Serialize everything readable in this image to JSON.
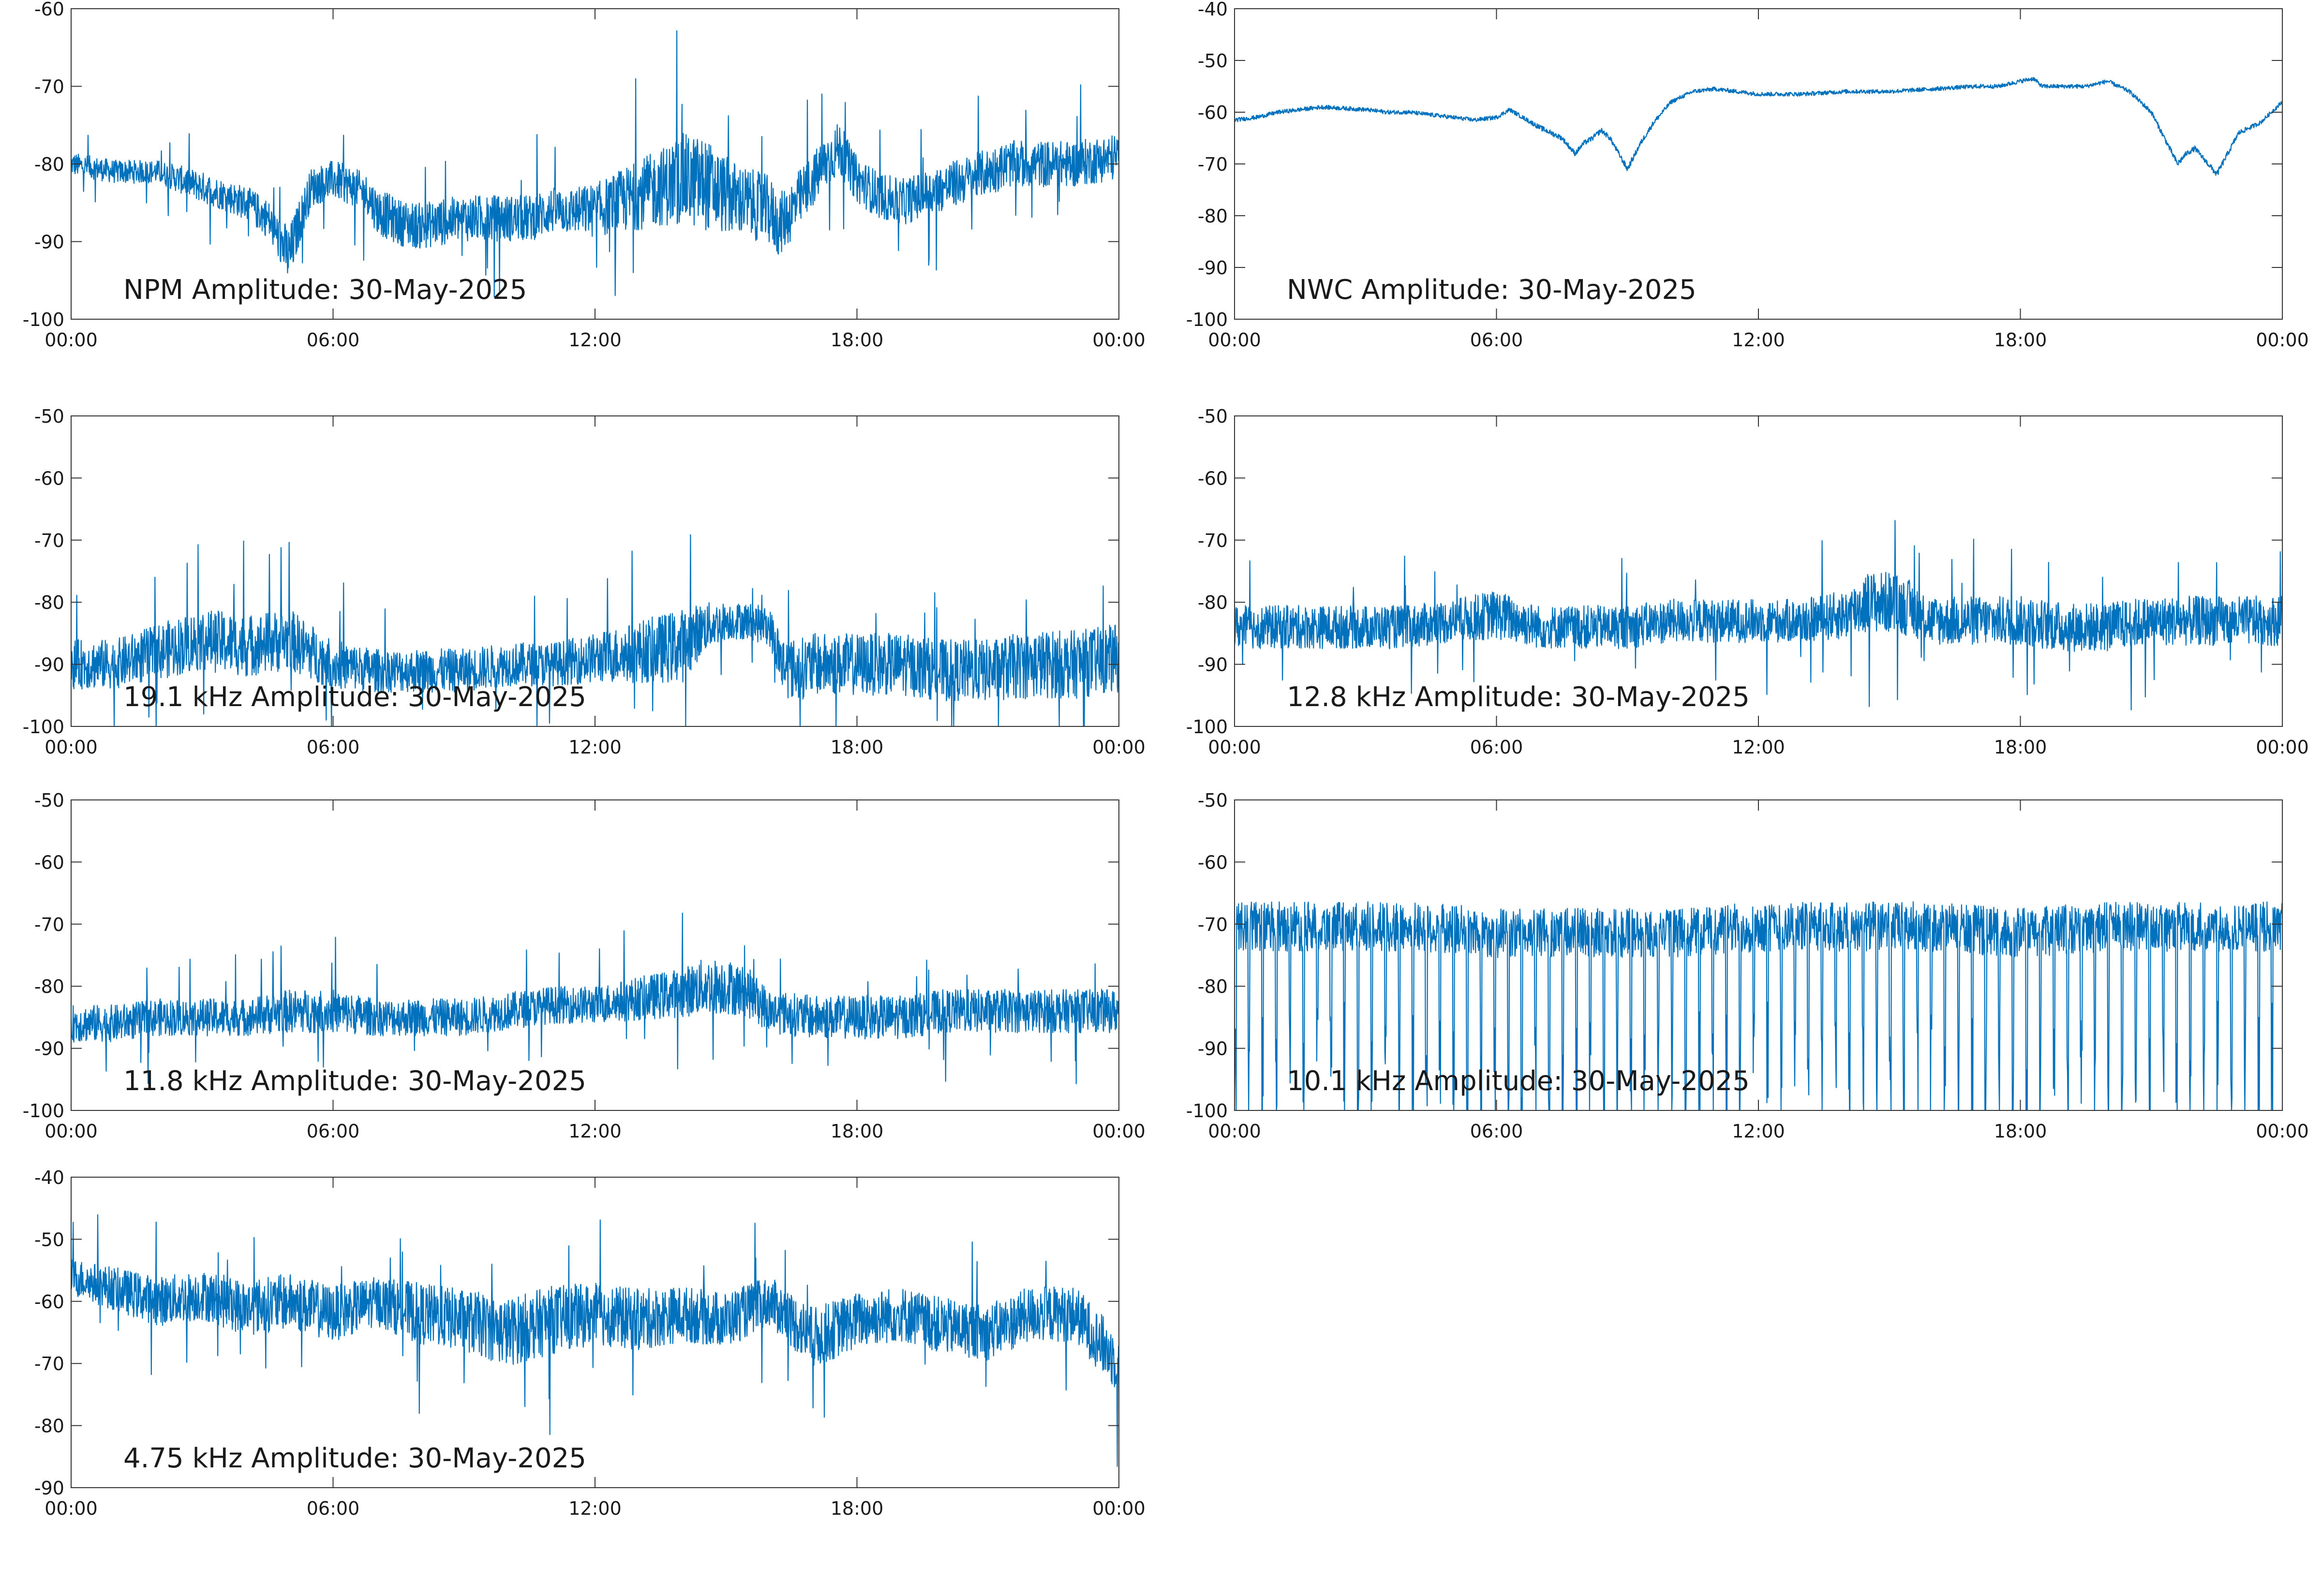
{
  "figure": {
    "series_color": "#0072bd",
    "axis_color": "#333333",
    "background": "#ffffff"
  },
  "chart_data": [
    {
      "type": "line",
      "title": "NPM Amplitude: 30-May-2025",
      "xlabel": "",
      "ylabel": "",
      "xticks": [
        "00:00",
        "06:00",
        "12:00",
        "18:00",
        "00:00"
      ],
      "xlim_hours": [
        0,
        24
      ],
      "yticks": [
        "-60",
        "-70",
        "-80",
        "-90",
        "-100"
      ],
      "ylim": [
        -100,
        -60
      ],
      "grid": false,
      "series": [
        {
          "x_hours": [
            0,
            0.5,
            1,
            1.5,
            2,
            2.5,
            3,
            3.5,
            4,
            4.5,
            4.8,
            5,
            5.2,
            5.5,
            6,
            6.5,
            6.8,
            7,
            7.5,
            8,
            8.5,
            9,
            9.5,
            10,
            10.5,
            11,
            11.5,
            12,
            12.5,
            13,
            13.5,
            14,
            14.5,
            15,
            15.5,
            16,
            16.2,
            16.5,
            17,
            17.4,
            17.6,
            17.8,
            18,
            18.5,
            19,
            19.5,
            20,
            20.5,
            21,
            21.5,
            22,
            22.5,
            23,
            23.5,
            24
          ],
          "values": [
            -80,
            -80.5,
            -81,
            -81,
            -81,
            -82,
            -83,
            -84,
            -85,
            -87,
            -90,
            -92,
            -88,
            -83,
            -82,
            -83,
            -84,
            -86,
            -87.5,
            -88,
            -87.5,
            -87,
            -87,
            -87,
            -87,
            -86,
            -86,
            -86,
            -85,
            -84,
            -83,
            -82,
            -82.5,
            -84,
            -85,
            -86,
            -88,
            -86,
            -82,
            -79,
            -78,
            -80,
            -82,
            -84,
            -85,
            -84,
            -83,
            -82,
            -81,
            -80,
            -80,
            -80,
            -80,
            -79.5,
            -79
          ],
          "noise": [
            1.5,
            1.5,
            1.5,
            1.5,
            1.5,
            1.8,
            2,
            2,
            2.2,
            2.5,
            3,
            4,
            3,
            2.5,
            2.5,
            2.5,
            2.5,
            3,
            3,
            3,
            3,
            3,
            3,
            3,
            3,
            3,
            3,
            3.5,
            4,
            4.5,
            5,
            6,
            6,
            5,
            4.5,
            4.5,
            4,
            4,
            3.5,
            3.5,
            3.5,
            3,
            3,
            3,
            3,
            3,
            3,
            3,
            3,
            3,
            3,
            3,
            3,
            3,
            3
          ]
        }
      ]
    },
    {
      "type": "line",
      "title": "NWC Amplitude: 30-May-2025",
      "xlabel": "",
      "ylabel": "",
      "xticks": [
        "00:00",
        "06:00",
        "12:00",
        "18:00",
        "00:00"
      ],
      "xlim_hours": [
        0,
        24
      ],
      "yticks": [
        "-40",
        "-50",
        "-60",
        "-70",
        "-80",
        "-90",
        "-100"
      ],
      "ylim": [
        -100,
        -40
      ],
      "grid": false,
      "series": [
        {
          "x_hours": [
            0,
            0.5,
            1,
            2,
            3,
            3.5,
            4,
            5,
            5.5,
            6,
            6.3,
            6.6,
            7,
            7.5,
            7.8,
            8,
            8.2,
            8.4,
            8.6,
            8.8,
            9,
            9.3,
            9.6,
            10,
            10.5,
            11,
            12,
            13,
            14,
            15,
            16,
            17,
            17.5,
            18,
            18.3,
            18.5,
            19,
            19.5,
            20,
            20.5,
            21,
            21.3,
            21.6,
            21.8,
            22,
            22.2,
            22.5,
            23,
            23.5,
            24
          ],
          "values": [
            -61.5,
            -61,
            -60,
            -59,
            -59.5,
            -60,
            -60,
            -61,
            -61.5,
            -61,
            -59.5,
            -61,
            -63,
            -65,
            -68,
            -66,
            -65,
            -63.5,
            -65,
            -68,
            -71,
            -66,
            -62,
            -58,
            -56,
            -55.5,
            -56.5,
            -56.5,
            -56,
            -56,
            -55.5,
            -55,
            -55,
            -54,
            -53.5,
            -55,
            -55,
            -55,
            -54,
            -56,
            -60,
            -65,
            -70,
            -68,
            -67,
            -69,
            -72,
            -64,
            -62,
            -58
          ],
          "noise": [
            0.4,
            0.4,
            0.4,
            0.4,
            0.4,
            0.4,
            0.4,
            0.4,
            0.4,
            0.4,
            0.4,
            0.4,
            0.5,
            0.5,
            0.5,
            0.5,
            0.5,
            0.5,
            0.5,
            0.5,
            0.6,
            0.5,
            0.5,
            0.4,
            0.4,
            0.4,
            0.4,
            0.4,
            0.4,
            0.4,
            0.4,
            0.4,
            0.4,
            0.4,
            0.4,
            0.4,
            0.4,
            0.4,
            0.4,
            0.4,
            0.5,
            0.5,
            0.6,
            0.5,
            0.5,
            0.5,
            0.6,
            0.5,
            0.4,
            0.4
          ]
        }
      ]
    },
    {
      "type": "line",
      "title": "19.1 kHz Amplitude: 30-May-2025",
      "xlabel": "",
      "ylabel": "",
      "xticks": [
        "00:00",
        "06:00",
        "12:00",
        "18:00",
        "00:00"
      ],
      "xlim_hours": [
        0,
        24
      ],
      "yticks": [
        "-50",
        "-60",
        "-70",
        "-80",
        "-90",
        "-100"
      ],
      "ylim": [
        -100,
        -50
      ],
      "grid": false,
      "series": [
        {
          "x_hours": [
            0,
            1,
            2,
            3,
            4,
            5,
            6,
            7,
            8,
            9,
            10,
            11,
            12,
            13,
            14,
            14.5,
            15,
            15.5,
            16,
            16.3,
            16.6,
            17,
            18,
            19,
            20,
            21,
            22,
            23,
            24
          ],
          "values": [
            -90,
            -90,
            -88,
            -86,
            -87,
            -86,
            -90,
            -91,
            -91,
            -91,
            -90,
            -90,
            -89,
            -88,
            -87,
            -84,
            -83,
            -83,
            -84,
            -90,
            -91,
            -90,
            -90,
            -90,
            -91,
            -91,
            -90,
            -90,
            -89
          ],
          "noise": [
            4,
            4,
            4.5,
            5,
            5,
            5,
            4,
            3.5,
            3.5,
            3.5,
            3.5,
            3.5,
            4,
            5,
            6,
            4,
            3,
            3,
            3,
            5,
            5,
            5,
            5,
            5,
            5,
            5,
            5.5,
            5.5,
            5.5
          ]
        }
      ]
    },
    {
      "type": "line",
      "title": "12.8 kHz Amplitude: 30-May-2025",
      "xlabel": "",
      "ylabel": "",
      "xticks": [
        "00:00",
        "06:00",
        "12:00",
        "18:00",
        "00:00"
      ],
      "xlim_hours": [
        0,
        24
      ],
      "yticks": [
        "-50",
        "-60",
        "-70",
        "-80",
        "-90",
        "-100"
      ],
      "ylim": [
        -100,
        -50
      ],
      "grid": false,
      "series": [
        {
          "x_hours": [
            0,
            1,
            2,
            3,
            4,
            5,
            6,
            7,
            8,
            9,
            10,
            11,
            12,
            13,
            14,
            14.5,
            15,
            15.5,
            16,
            17,
            18,
            19,
            20,
            21,
            22,
            23,
            24
          ],
          "values": [
            -84,
            -84,
            -84,
            -84,
            -84,
            -83,
            -82,
            -84,
            -84,
            -84,
            -83,
            -83,
            -83,
            -83,
            -82,
            -80,
            -80,
            -81,
            -83,
            -83,
            -83,
            -84,
            -84,
            -83,
            -83,
            -83,
            -83
          ],
          "noise": [
            3.5,
            3.5,
            3.5,
            3.5,
            3.5,
            3.5,
            4,
            3.5,
            3.5,
            3.5,
            3.5,
            3.5,
            3.5,
            3.5,
            4,
            5,
            5,
            4.5,
            4,
            4,
            4,
            4,
            4,
            4,
            4,
            4,
            4
          ]
        }
      ]
    },
    {
      "type": "line",
      "title": "11.8 kHz Amplitude: 30-May-2025",
      "xlabel": "",
      "ylabel": "",
      "xticks": [
        "00:00",
        "06:00",
        "12:00",
        "18:00",
        "00:00"
      ],
      "xlim_hours": [
        0,
        24
      ],
      "yticks": [
        "-50",
        "-60",
        "-70",
        "-80",
        "-90",
        "-100"
      ],
      "ylim": [
        -100,
        -50
      ],
      "grid": false,
      "series": [
        {
          "x_hours": [
            0,
            1,
            2,
            3,
            4,
            5,
            6,
            7,
            8,
            9,
            10,
            11,
            12,
            13,
            14,
            14.5,
            15,
            15.5,
            16,
            17,
            18,
            19,
            20,
            21,
            22,
            23,
            24
          ],
          "values": [
            -86,
            -86,
            -85,
            -85,
            -85,
            -84,
            -84,
            -85,
            -85,
            -85,
            -84,
            -83,
            -83,
            -82,
            -81,
            -80,
            -80,
            -81,
            -84,
            -85,
            -85,
            -85,
            -84,
            -84,
            -84,
            -84,
            -84
          ],
          "noise": [
            3,
            3,
            3,
            3,
            3,
            3.5,
            3.5,
            3,
            3,
            3,
            3,
            3,
            3,
            3.5,
            4,
            4.5,
            4.5,
            4,
            3.5,
            3.5,
            3.5,
            3.5,
            3.5,
            3.5,
            3.5,
            3.5,
            3.5
          ]
        }
      ]
    },
    {
      "type": "line",
      "title": "10.1 kHz Amplitude: 30-May-2025",
      "xlabel": "",
      "ylabel": "",
      "xticks": [
        "00:00",
        "06:00",
        "12:00",
        "18:00",
        "00:00"
      ],
      "xlim_hours": [
        0,
        24
      ],
      "yticks": [
        "-50",
        "-60",
        "-70",
        "-80",
        "-90",
        "-100"
      ],
      "ylim": [
        -100,
        -50
      ],
      "grid": false,
      "series": [
        {
          "x_hours": [
            0,
            2,
            4,
            6,
            8,
            10,
            12,
            14,
            16,
            18,
            20,
            22,
            24
          ],
          "values": [
            -72,
            -72,
            -72,
            -73,
            -73,
            -73,
            -72,
            -72,
            -72,
            -73,
            -72,
            -72,
            -72
          ],
          "noise": [
            4,
            4,
            4,
            4,
            4,
            4,
            4,
            4,
            4,
            4,
            4,
            4,
            4
          ]
        }
      ]
    },
    {
      "type": "line",
      "title": "4.75 kHz Amplitude: 30-May-2025",
      "xlabel": "",
      "ylabel": "",
      "xticks": [
        "00:00",
        "06:00",
        "12:00",
        "18:00",
        "00:00"
      ],
      "xlim_hours": [
        0,
        24
      ],
      "yticks": [
        "-40",
        "-50",
        "-60",
        "-70",
        "-80",
        "-90"
      ],
      "ylim": [
        -90,
        -40
      ],
      "grid": false,
      "series": [
        {
          "x_hours": [
            0,
            1,
            2,
            3,
            4,
            5,
            6,
            7,
            8,
            9,
            10,
            11,
            12,
            13,
            14,
            15,
            16,
            17,
            18,
            19,
            20,
            21,
            22,
            23,
            24
          ],
          "values": [
            -56,
            -58,
            -60,
            -59,
            -61,
            -60,
            -62,
            -60,
            -62,
            -63,
            -65,
            -63,
            -62,
            -63,
            -62,
            -63,
            -60,
            -66,
            -63,
            -62,
            -64,
            -65,
            -62,
            -62,
            -70
          ],
          "noise": [
            3,
            3.5,
            4,
            4,
            4.5,
            4.5,
            4.5,
            4,
            5,
            5,
            5.5,
            5.5,
            5,
            5,
            4.5,
            4.5,
            4,
            5,
            4.5,
            4.5,
            4.5,
            4.5,
            4.5,
            4.5,
            5
          ]
        }
      ]
    }
  ]
}
